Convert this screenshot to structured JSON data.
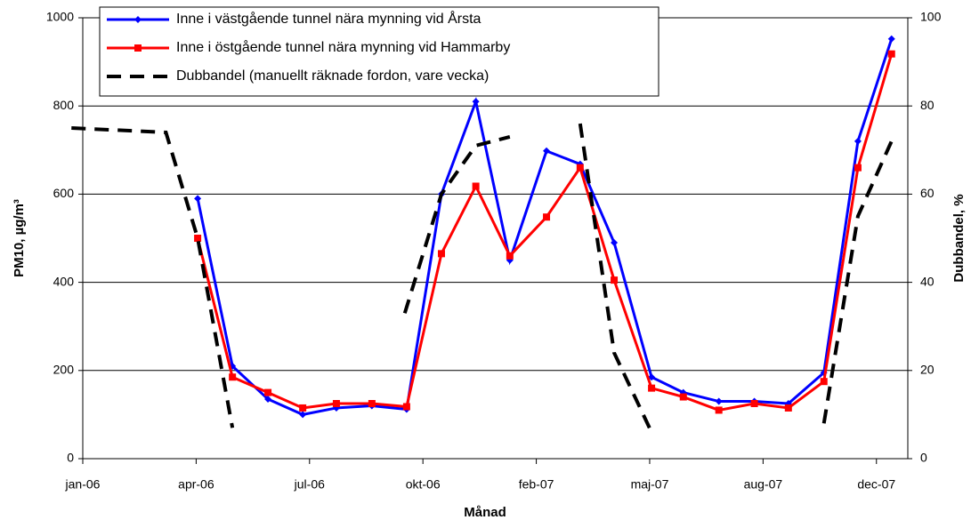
{
  "chart_data": {
    "type": "line",
    "xlabel": "Månad",
    "ylabel": "PM10, µg/m³",
    "y2label": "Dubbandel, %",
    "xlim": [
      0,
      21.83
    ],
    "xticks": [
      {
        "value": 0,
        "label": "jan-06"
      },
      {
        "value": 3,
        "label": "apr-06"
      },
      {
        "value": 6,
        "label": "jul-06"
      },
      {
        "value": 9,
        "label": "okt-06"
      },
      {
        "value": 12,
        "label": "feb-07"
      },
      {
        "value": 15,
        "label": "maj-07"
      },
      {
        "value": 18,
        "label": "aug-07"
      },
      {
        "value": 21,
        "label": "dec-07"
      }
    ],
    "ylim": [
      0,
      1000
    ],
    "yticks": [
      0,
      200,
      400,
      600,
      800,
      1000
    ],
    "y2lim": [
      0,
      100
    ],
    "y2ticks": [
      0,
      20,
      40,
      60,
      80,
      100
    ],
    "grid": true,
    "series": [
      {
        "name": "Inne i västgående tunnel nära mynning vid Årsta",
        "color": "#0000ff",
        "marker": "diamond",
        "x": [
          3.04,
          3.96,
          4.9,
          5.82,
          6.71,
          7.65,
          8.57,
          9.49,
          10.4,
          11.3,
          12.27,
          13.16,
          14.06,
          15.05,
          15.89,
          16.83,
          17.77,
          18.67,
          19.61,
          20.51,
          21.4
        ],
        "values": [
          590,
          210,
          135,
          100,
          115,
          120,
          112,
          600,
          810,
          450,
          698,
          668,
          490,
          185,
          150,
          130,
          130,
          125,
          195,
          720,
          952
        ]
      },
      {
        "name": "Inne i östgående tunnel nära mynning vid Hammarby",
        "color": "#ff0000",
        "marker": "square",
        "x": [
          3.04,
          3.96,
          4.9,
          5.82,
          6.71,
          7.65,
          8.57,
          9.49,
          10.4,
          11.3,
          12.27,
          13.16,
          14.06,
          15.05,
          15.89,
          16.83,
          17.77,
          18.67,
          19.61,
          20.51,
          21.4
        ],
        "values": [
          500,
          185,
          150,
          115,
          125,
          125,
          118,
          465,
          618,
          460,
          548,
          660,
          405,
          160,
          140,
          110,
          125,
          115,
          175,
          660,
          918
        ]
      },
      {
        "name": "Dubbandel (manuellt räknade fordon, vare vecka)",
        "color": "#000000",
        "dashed": true,
        "axis": "y2",
        "x": [
          -0.3,
          2.2,
          3.04,
          3.96,
          null,
          8.52,
          9.49,
          10.4,
          11.3,
          null,
          13.16,
          14.06,
          15.05,
          null,
          19.61,
          20.51,
          21.4
        ],
        "values": [
          75,
          74,
          50,
          7,
          null,
          33,
          60,
          71,
          73,
          null,
          76,
          24,
          6,
          null,
          8,
          55,
          72
        ]
      }
    ]
  }
}
